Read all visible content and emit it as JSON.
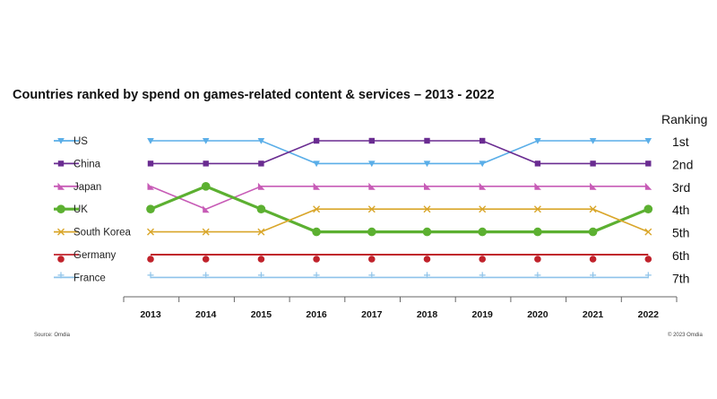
{
  "chart_data": {
    "type": "line",
    "title": "Countries ranked by spend on games-related content & services – 2013 - 2022",
    "ranking_header": "Ranking",
    "rank_labels": [
      "1st",
      "2nd",
      "3rd",
      "4th",
      "5th",
      "6th",
      "7th"
    ],
    "categories": [
      "2013",
      "2014",
      "2015",
      "2016",
      "2017",
      "2018",
      "2019",
      "2020",
      "2021",
      "2022"
    ],
    "ylim": [
      1,
      7
    ],
    "y_inverted": true,
    "legend_position": "left",
    "series": [
      {
        "name": "US",
        "color": "#5aaee8",
        "marker": "triangle-down",
        "values": [
          1,
          1,
          1,
          2,
          2,
          2,
          2,
          1,
          1,
          1
        ]
      },
      {
        "name": "China",
        "color": "#6a2c91",
        "marker": "square",
        "values": [
          2,
          2,
          2,
          1,
          1,
          1,
          1,
          2,
          2,
          2
        ]
      },
      {
        "name": "Japan",
        "color": "#c75bb6",
        "marker": "triangle-right",
        "values": [
          3,
          4,
          3,
          3,
          3,
          3,
          3,
          3,
          3,
          3
        ]
      },
      {
        "name": "UK",
        "color": "#5cb031",
        "marker": "circle-large",
        "values": [
          4,
          3,
          4,
          5,
          5,
          5,
          5,
          5,
          5,
          4
        ]
      },
      {
        "name": "South Korea",
        "color": "#d9a62a",
        "marker": "x",
        "values": [
          5,
          5,
          5,
          4,
          4,
          4,
          4,
          4,
          4,
          5
        ]
      },
      {
        "name": "Germany",
        "color": "#c0222b",
        "marker": "dot",
        "values": [
          6,
          6,
          6,
          6,
          6,
          6,
          6,
          6,
          6,
          6
        ]
      },
      {
        "name": "France",
        "color": "#8ec3ea",
        "marker": "plus",
        "values": [
          7,
          7,
          7,
          7,
          7,
          7,
          7,
          7,
          7,
          7
        ]
      }
    ],
    "source": "Source: Omdia",
    "copyright": "© 2023 Omdia"
  }
}
